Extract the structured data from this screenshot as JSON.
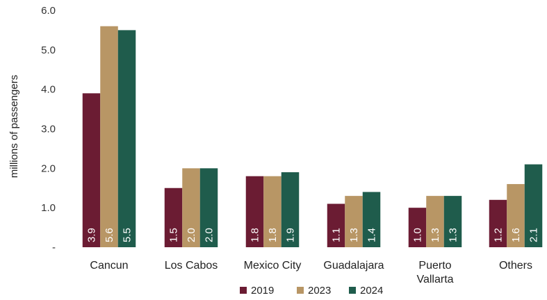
{
  "chart_data": {
    "type": "bar",
    "ylabel": "millions of passengers",
    "ylim": [
      0,
      6
    ],
    "yticks": [
      "-",
      "1.0",
      "2.0",
      "3.0",
      "4.0",
      "5.0",
      "6.0"
    ],
    "categories": [
      "Cancun",
      "Los Cabos",
      "Mexico City",
      "Guadalajara",
      "Puerto Vallarta",
      "Others"
    ],
    "series": [
      {
        "name": "2019",
        "color": "#6b1c33",
        "values": [
          3.9,
          1.5,
          1.8,
          1.1,
          1.0,
          1.2
        ],
        "labels": [
          "3.9",
          "1.5",
          "1.8",
          "1.1",
          "1.0",
          "1.2"
        ]
      },
      {
        "name": "2023",
        "color": "#b89665",
        "values": [
          5.6,
          2.0,
          1.8,
          1.3,
          1.3,
          1.6
        ],
        "labels": [
          "5.6",
          "2.0",
          "1.8",
          "1.3",
          "1.3",
          "1.6"
        ]
      },
      {
        "name": "2024",
        "color": "#1f5c4c",
        "values": [
          5.5,
          2.0,
          1.9,
          1.4,
          1.3,
          2.1
        ],
        "labels": [
          "5.5",
          "2.0",
          "1.9",
          "1.4",
          "1.3",
          "2.1"
        ]
      }
    ],
    "grid": false,
    "legend_position": "bottom-center"
  }
}
